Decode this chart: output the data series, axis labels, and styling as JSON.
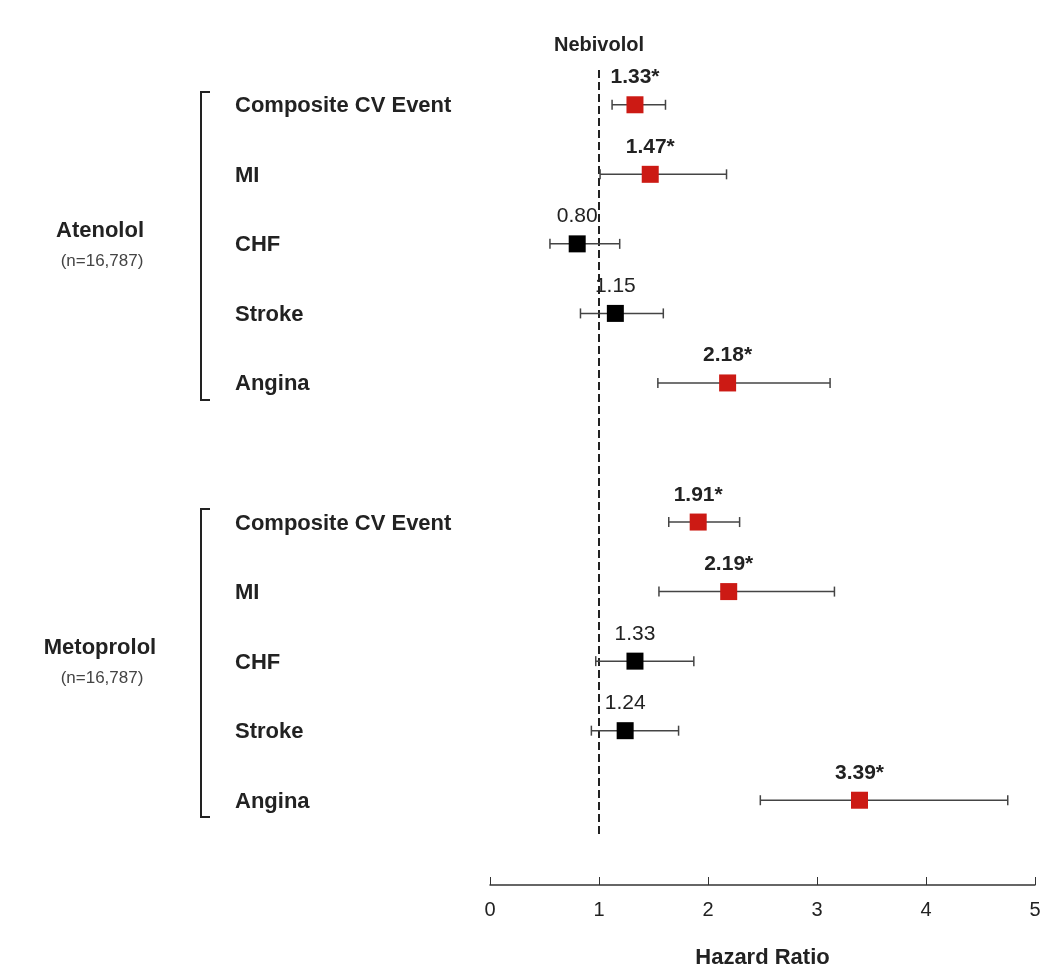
{
  "chart_data": {
    "type": "scatter",
    "orientation": "horizontal",
    "xlabel": "Hazard Ratio",
    "categories": [
      "Composite CV Event",
      "MI",
      "CHF",
      "Stroke",
      "Angina",
      null,
      "Composite CV Event",
      "MI",
      "CHF",
      "Stroke",
      "Angina"
    ],
    "values": [
      1.33,
      1.47,
      0.8,
      1.15,
      2.18,
      null,
      1.91,
      2.19,
      1.33,
      1.24,
      3.39
    ],
    "errors": [
      [
        1.12,
        1.61
      ],
      [
        1.01,
        2.17
      ],
      [
        0.55,
        1.19
      ],
      [
        0.83,
        1.59
      ],
      [
        1.54,
        3.12
      ],
      null,
      [
        1.64,
        2.29
      ],
      [
        1.55,
        3.16
      ],
      [
        0.97,
        1.87
      ],
      [
        0.93,
        1.73
      ],
      [
        2.48,
        4.75
      ]
    ],
    "value_labels": [
      "1.33*",
      "1.47*",
      "0.80",
      "1.15",
      "2.18*",
      null,
      "1.91*",
      "2.19*",
      "1.33",
      "1.24",
      "3.39*"
    ],
    "colors": [
      "#cc1a14",
      "#cc1a14",
      "#000000",
      "#000000",
      "#cc1a14",
      null,
      "#cc1a14",
      "#cc1a14",
      "#000000",
      "#000000",
      "#cc1a14"
    ],
    "xlim": [
      0,
      5
    ],
    "xticks": [
      0,
      1,
      2,
      3,
      4,
      5
    ],
    "grid": false,
    "marker": "square",
    "ref_lines": [
      {
        "axis": "x",
        "value": 1,
        "label": "Nebivolol",
        "line_style": "dashed",
        "color": "#222222"
      }
    ],
    "annotations": [
      "Atenolol",
      "(n=16,787)",
      "Metoprolol",
      "(n=16,787)"
    ]
  }
}
